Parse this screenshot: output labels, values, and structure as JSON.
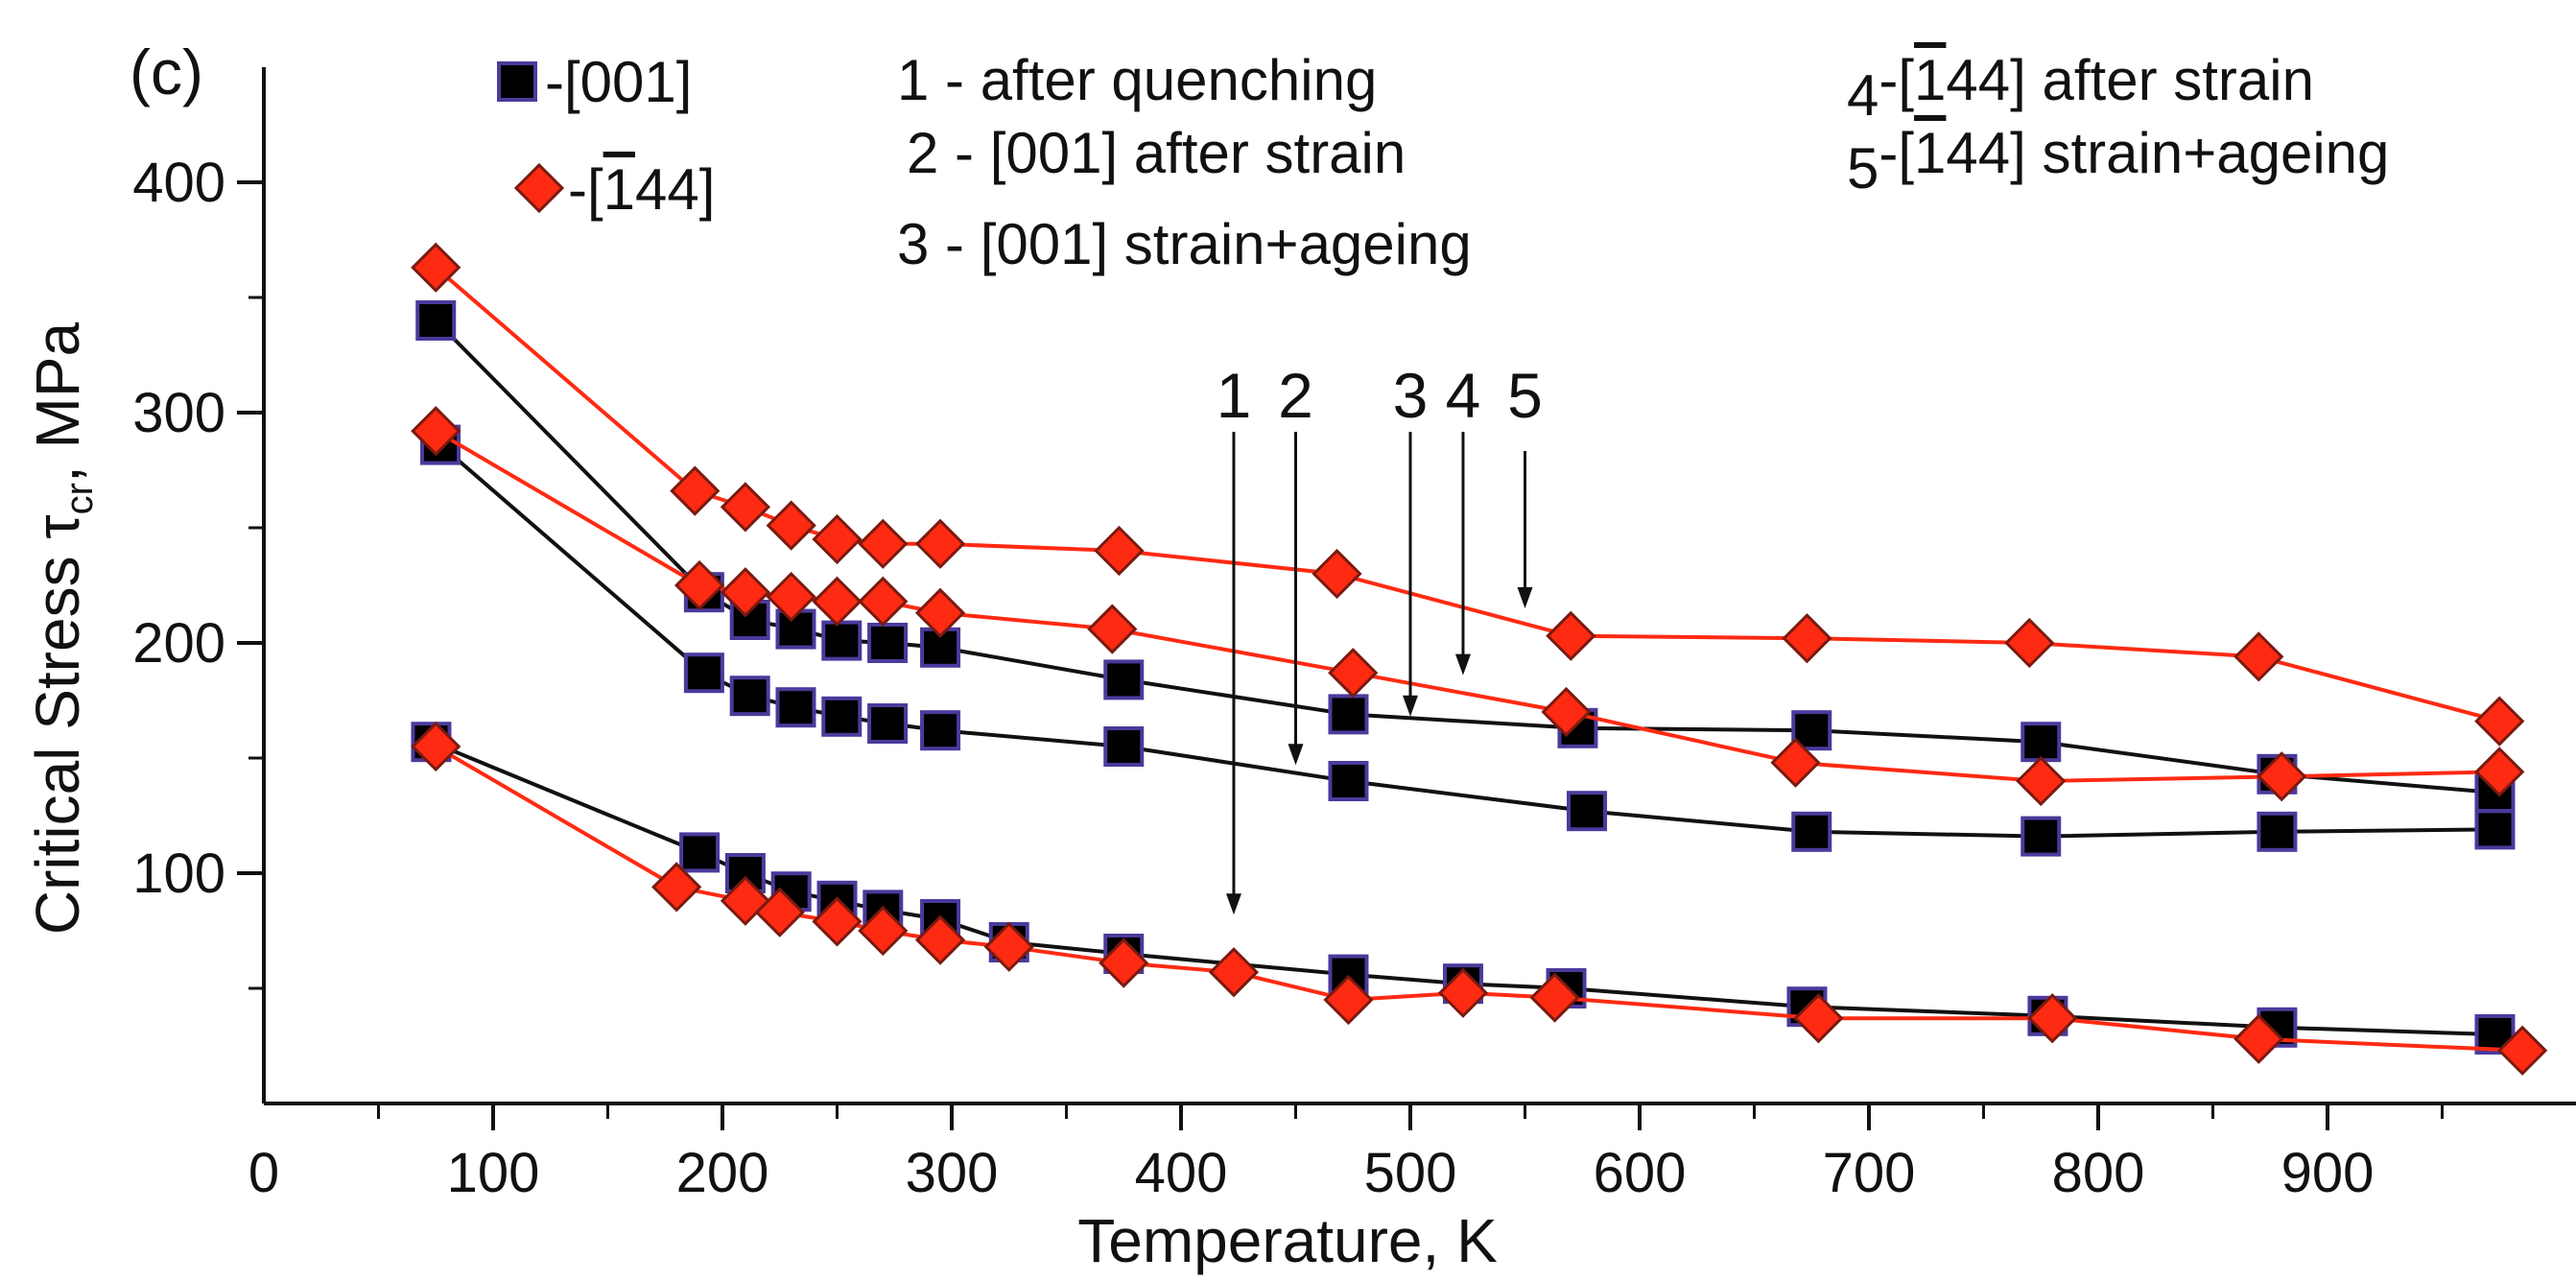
{
  "chart_data": {
    "type": "line",
    "panel_label": "(c)",
    "xlabel": "Temperature, K",
    "ylabel_main": "Critical Stress τ",
    "ylabel_sub": "cr",
    "ylabel_unit": ", MPa",
    "xlim": [
      0,
      1000
    ],
    "ylim": [
      0,
      450
    ],
    "x_ticks": [
      0,
      100,
      200,
      300,
      400,
      500,
      600,
      700,
      800,
      900
    ],
    "x_tick_labels": [
      "0",
      "100",
      "200",
      "300",
      "400",
      "500",
      "600",
      "700",
      "800",
      "900"
    ],
    "y_ticks": [
      100,
      200,
      300,
      400
    ],
    "y_tick_labels": [
      "100",
      "200",
      "300",
      "400"
    ],
    "grid": false,
    "legend": [
      {
        "marker": "square",
        "text": "-[001]",
        "text_main": "-[001]",
        "color": "#000000",
        "edge": "#4b3a9c"
      },
      {
        "marker": "diamond",
        "text": "-[144]",
        "text_prefix": "-[",
        "text_bar_digit": "1",
        "text_rest": "44]",
        "color": "#ff2a12",
        "edge": "#7a1a10"
      }
    ],
    "notes": [
      {
        "text": "1 - after quenching",
        "text_main": "1 - after quenching"
      },
      {
        "text": "2 - [001] after strain",
        "text_main": "2 - [001] after strain"
      },
      {
        "text": "3 - [001] strain+ageing",
        "text_main": "3 - [001] strain+ageing"
      },
      {
        "text": "4 -[144] after strain",
        "num": "4",
        "bracket": "-[",
        "bar_digit": "1",
        "rest": "44] after strain"
      },
      {
        "text": "5 -[144] strain+ageing",
        "num": "5",
        "bracket": "-[",
        "bar_digit": "1",
        "rest": "44] strain+ageing"
      }
    ],
    "arrows": [
      {
        "label": "1",
        "x": 423,
        "y_tip": 82
      },
      {
        "label": "2",
        "x": 450,
        "y_tip": 147
      },
      {
        "label": "3",
        "x": 500,
        "y_tip": 168
      },
      {
        "label": "4",
        "x": 523,
        "y_tip": 186
      },
      {
        "label": "5",
        "x": 550,
        "y_tip": 215
      }
    ],
    "series": [
      {
        "label": "1",
        "orientation": "[001]",
        "marker": "square",
        "color": "#000000",
        "edge": "#4b3a9c",
        "x": [
          73,
          190,
          210,
          230,
          250,
          270,
          295,
          325,
          375,
          473,
          523,
          568,
          673,
          778,
          878,
          973
        ],
        "y": [
          157,
          109,
          100,
          92,
          88,
          84,
          80,
          70,
          65,
          56,
          52,
          50,
          42,
          38,
          33,
          30
        ]
      },
      {
        "label": "1",
        "orientation": "[144]",
        "marker": "diamond",
        "color": "#ff2a12",
        "edge": "#7a1a10",
        "x": [
          75,
          180,
          210,
          225,
          250,
          270,
          295,
          325,
          375,
          423,
          473,
          523,
          563,
          678,
          780,
          870,
          985
        ],
        "y": [
          155,
          94,
          88,
          83,
          79,
          75,
          71,
          68,
          61,
          57,
          45,
          48,
          46,
          37,
          37,
          28,
          23
        ]
      },
      {
        "label": "2",
        "orientation": "[001]",
        "marker": "square",
        "color": "#000000",
        "edge": "#4b3a9c",
        "x": [
          77,
          192,
          212,
          232,
          252,
          272,
          295,
          375,
          473,
          577,
          675,
          775,
          878,
          973
        ],
        "y": [
          286,
          187,
          177,
          172,
          168,
          165,
          162,
          155,
          140,
          127,
          118,
          116,
          118,
          119
        ]
      },
      {
        "label": "3",
        "orientation": "[001]",
        "marker": "square",
        "color": "#000000",
        "edge": "#4b3a9c",
        "x": [
          75,
          192,
          212,
          232,
          252,
          272,
          295,
          375,
          473,
          573,
          675,
          775,
          878,
          973
        ],
        "y": [
          340,
          222,
          210,
          206,
          201,
          200,
          198,
          184,
          169,
          163,
          162,
          157,
          143,
          135
        ]
      },
      {
        "label": "4",
        "orientation": "[144]",
        "marker": "diamond",
        "color": "#ff2a12",
        "edge": "#7a1a10",
        "x": [
          75,
          190,
          210,
          230,
          250,
          270,
          295,
          370,
          475,
          568,
          668,
          775,
          880,
          975
        ],
        "y": [
          292,
          225,
          222,
          220,
          218,
          218,
          213,
          206,
          187,
          170,
          148,
          140,
          142,
          144
        ]
      },
      {
        "label": "5",
        "orientation": "[144]",
        "marker": "diamond",
        "color": "#ff2a12",
        "edge": "#7a1a10",
        "x": [
          75,
          188,
          210,
          230,
          250,
          270,
          295,
          373,
          468,
          570,
          673,
          770,
          870,
          975
        ],
        "y": [
          363,
          266,
          259,
          251,
          245,
          243,
          243,
          240,
          230,
          203,
          202,
          200,
          194,
          166
        ]
      }
    ]
  }
}
